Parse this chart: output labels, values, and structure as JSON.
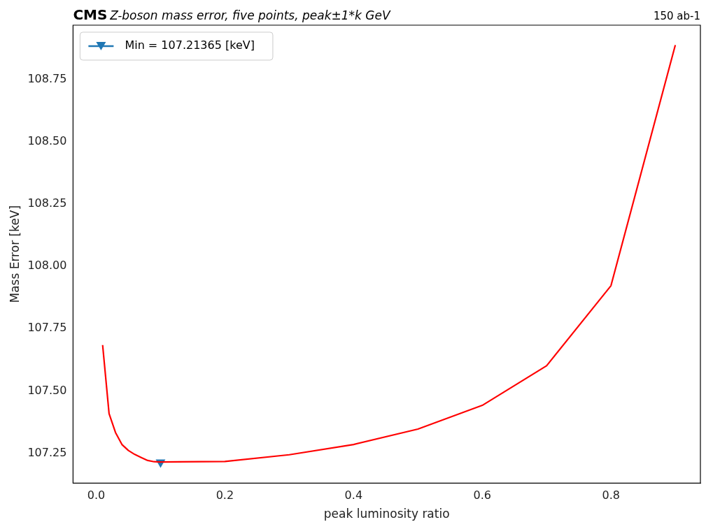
{
  "chart_data": {
    "type": "line",
    "title": "CMS",
    "subtitle": "Z-boson mass error, five points, peak±1*k GeV",
    "annotations": [
      "150 ab-1"
    ],
    "xlabel": "peak luminosity ratio",
    "ylabel": "Mass Error [keV]",
    "xlim": [
      -0.036,
      0.939
    ],
    "ylim": [
      107.13,
      108.967
    ],
    "xticks": [
      {
        "value": 0,
        "label": "0.0"
      },
      0.2,
      0.4,
      0.6,
      0.8
    ],
    "yticks": [
      {
        "value": 107.25,
        "label": "107.25"
      },
      {
        "value": 107.5,
        "label": "107.50"
      },
      {
        "value": 107.75,
        "label": "107.75"
      },
      {
        "value": 108,
        "label": "108.00"
      },
      {
        "value": 108.25,
        "label": "108.25"
      },
      {
        "value": 108.5,
        "label": "108.50"
      },
      {
        "value": 108.75,
        "label": "108.75"
      }
    ],
    "grid": false,
    "legend": "top left",
    "line_style": "solid",
    "series": [
      {
        "color": "#ff0000",
        "marker": "none",
        "x": [
          0.01,
          0.02,
          0.03,
          0.04,
          0.05,
          0.06,
          0.07,
          0.08,
          0.09,
          0.1,
          0.2,
          0.3,
          0.4,
          0.5,
          0.6,
          0.7,
          0.8,
          0.9
        ],
        "values": [
          107.684,
          107.409,
          107.333,
          107.285,
          107.261,
          107.245,
          107.233,
          107.221,
          107.216,
          107.215,
          107.217,
          107.244,
          107.285,
          107.347,
          107.442,
          107.601,
          107.922,
          108.887
        ]
      },
      {
        "type": "scatter",
        "name": "Min = 107.21365 [keV]",
        "color": "#1f77b4",
        "marker": "triangle",
        "x": [
          0.1
        ],
        "values": [
          107.21365
        ]
      }
    ]
  }
}
